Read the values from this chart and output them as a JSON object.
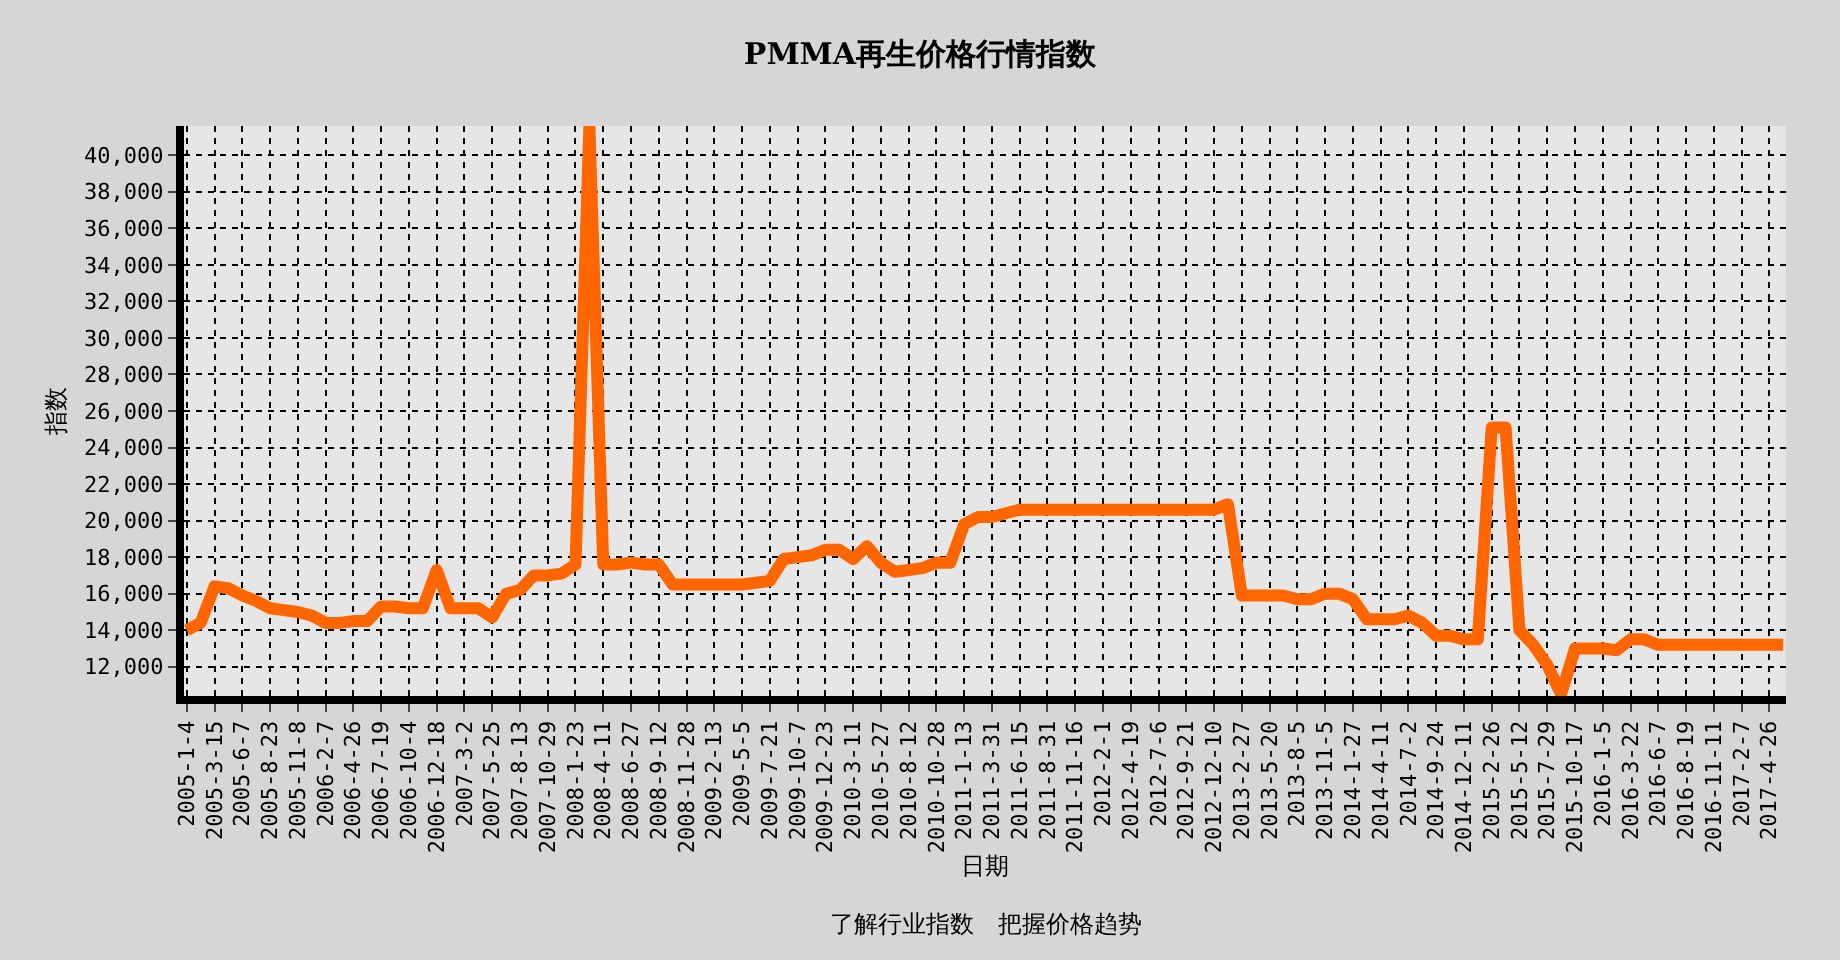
{
  "chart_data": {
    "type": "line",
    "title": "PMMA再生价格行情指数",
    "xlabel": "日期",
    "ylabel": "指数",
    "annotations": [
      "了解行业指数　把握价格趋势"
    ],
    "categories": [
      "2005-1-4",
      null,
      "2005-3-15",
      null,
      "2005-6-7",
      null,
      "2005-8-23",
      null,
      "2005-11-8",
      null,
      "2006-2-7",
      null,
      "2006-4-26",
      null,
      "2006-7-19",
      null,
      "2006-10-4",
      null,
      "2006-12-18",
      null,
      "2007-3-2",
      null,
      "2007-5-25",
      null,
      "2007-8-13",
      null,
      "2007-10-29",
      null,
      "2008-1-23",
      null,
      "2008-4-11",
      null,
      "2008-6-27",
      null,
      "2008-9-12",
      null,
      "2008-11-28",
      null,
      "2009-2-13",
      null,
      "2009-5-5",
      null,
      "2009-7-21",
      null,
      "2009-10-7",
      null,
      "2009-12-23",
      null,
      "2010-3-11",
      null,
      "2010-5-27",
      null,
      "2010-8-12",
      null,
      "2010-10-28",
      null,
      "2011-1-13",
      null,
      "2011-3-31",
      null,
      "2011-6-15",
      null,
      "2011-8-31",
      null,
      "2011-11-16",
      null,
      "2012-2-1",
      null,
      "2012-4-19",
      null,
      "2012-7-6",
      null,
      "2012-9-21",
      null,
      "2012-12-10",
      null,
      "2013-2-27",
      null,
      "2013-5-20",
      null,
      "2013-8-5",
      null,
      "2013-11-5",
      null,
      "2014-1-27",
      null,
      "2014-4-11",
      null,
      "2014-7-2",
      null,
      "2014-9-24",
      null,
      "2014-12-11",
      null,
      "2015-2-26",
      null,
      "2015-5-12",
      null,
      "2015-7-29",
      null,
      "2015-10-17",
      null,
      "2016-1-5",
      null,
      "2016-3-22",
      null,
      "2016-6-7",
      null,
      "2016-8-19",
      null,
      "2016-11-11",
      null,
      "2017-2-7",
      null,
      "2017-4-26",
      null
    ],
    "series": [
      {
        "color": "#ff6600",
        "values": [
          14000,
          14400,
          16400,
          16300,
          15900,
          15600,
          15200,
          15100,
          15000,
          14800,
          14400,
          14400,
          14500,
          14500,
          15300,
          15300,
          15200,
          15200,
          17300,
          15200,
          15200,
          15200,
          14700,
          16000,
          16200,
          17000,
          17000,
          17100,
          17600,
          41600,
          17600,
          17600,
          17700,
          17600,
          17600,
          16500,
          16500,
          16500,
          16500,
          16500,
          16500,
          16600,
          16700,
          17900,
          18000,
          18100,
          18400,
          18400,
          17900,
          18600,
          17700,
          17200,
          17300,
          17400,
          17700,
          17700,
          19800,
          20200,
          20200,
          20400,
          20600,
          20600,
          20600,
          20600,
          20600,
          20600,
          20600,
          20600,
          20600,
          20600,
          20600,
          20600,
          20600,
          20600,
          20600,
          20900,
          15900,
          15900,
          15900,
          15900,
          15700,
          15700,
          16000,
          16000,
          15700,
          14600,
          14600,
          14600,
          14800,
          14400,
          13700,
          13700,
          13500,
          13500,
          25100,
          25100,
          14000,
          13200,
          12100,
          10500,
          13000,
          13000,
          13000,
          12900,
          13500,
          13500,
          13200,
          13200,
          13200,
          13200,
          13200,
          13200,
          13200,
          13200,
          13200,
          13200
        ]
      }
    ],
    "ylim": [
      10400,
      41600
    ],
    "yticks": [
      {
        "value": 12000,
        "label": "12,000"
      },
      {
        "value": 14000,
        "label": "14,000"
      },
      {
        "value": 16000,
        "label": "16,000"
      },
      {
        "value": 18000,
        "label": "18,000"
      },
      {
        "value": 20000,
        "label": "20,000"
      },
      {
        "value": 22000,
        "label": "22,000"
      },
      {
        "value": 24000,
        "label": "24,000"
      },
      {
        "value": 26000,
        "label": "26,000"
      },
      {
        "value": 28000,
        "label": "28,000"
      },
      {
        "value": 30000,
        "label": "30,000"
      },
      {
        "value": 32000,
        "label": "32,000"
      },
      {
        "value": 34000,
        "label": "34,000"
      },
      {
        "value": 36000,
        "label": "36,000"
      },
      {
        "value": 38000,
        "label": "38,000"
      },
      {
        "value": 40000,
        "label": "40,000"
      }
    ],
    "grid": true,
    "marker": "none",
    "line_style": "solid"
  }
}
